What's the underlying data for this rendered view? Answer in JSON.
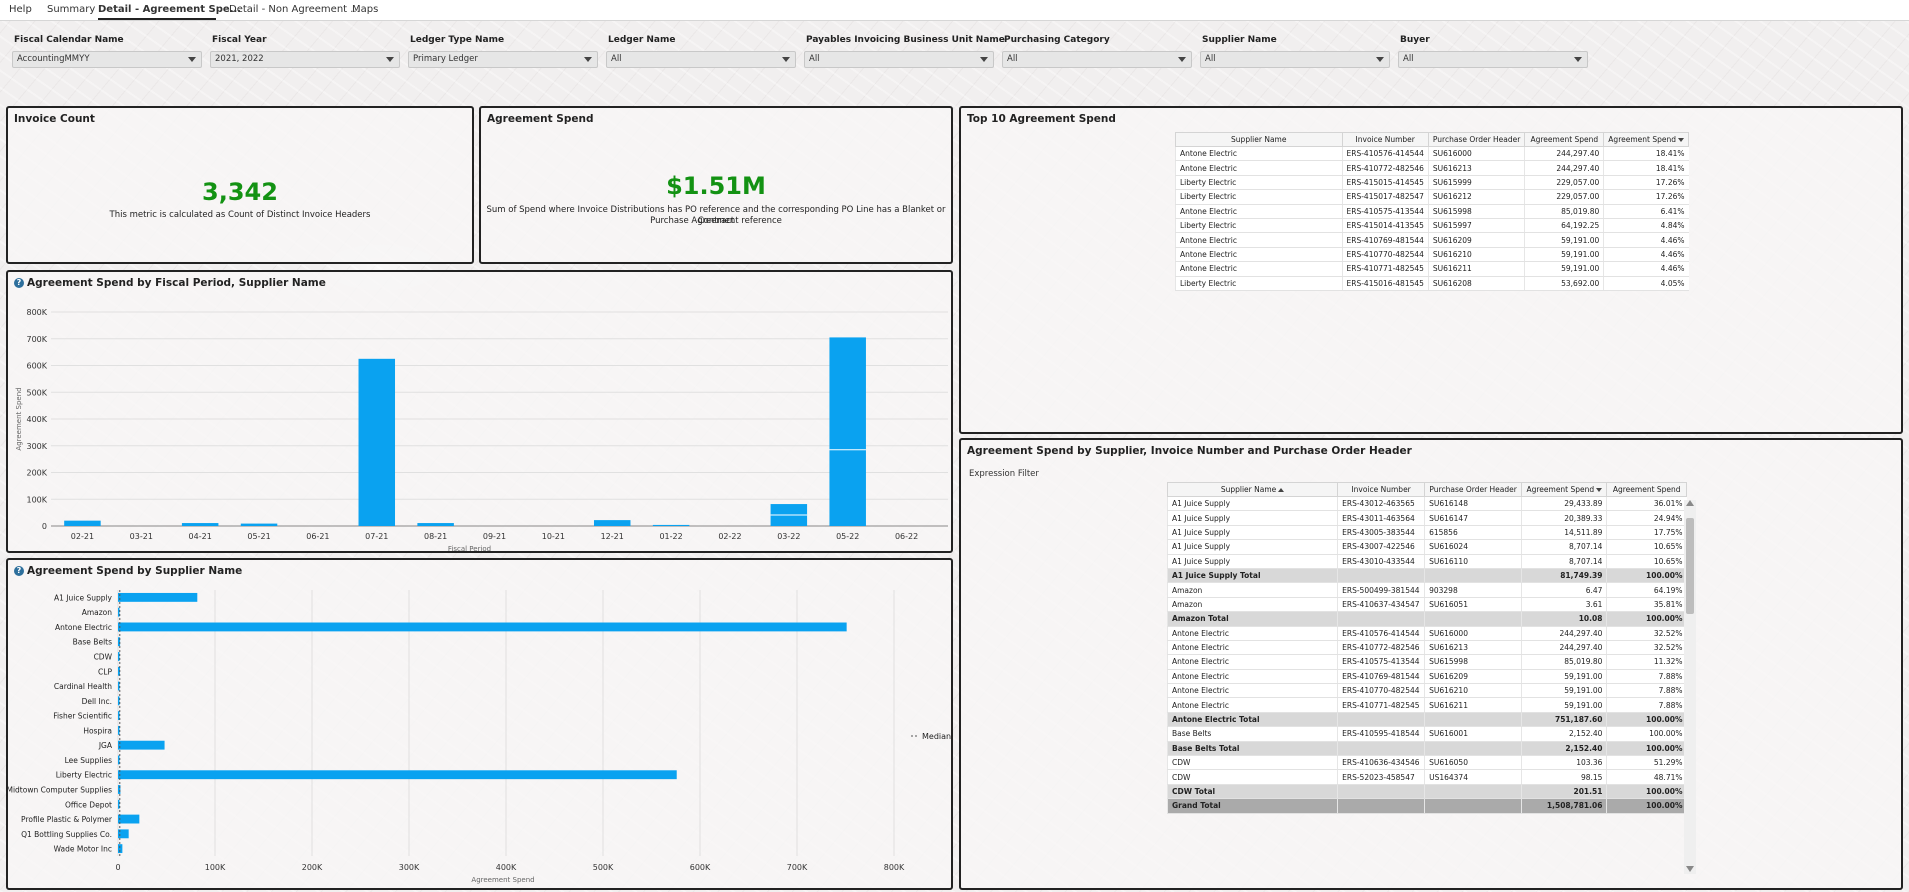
{
  "tabs": [
    {
      "label": "Help"
    },
    {
      "label": "Summary"
    },
    {
      "label": "Detail - Agreement Spe...",
      "active": true
    },
    {
      "label": "Detail - Non Agreement ..."
    },
    {
      "label": "Maps"
    }
  ],
  "filters": [
    {
      "label": "Fiscal Calendar Name",
      "value": "AccountingMMYY"
    },
    {
      "label": "Fiscal Year",
      "value": "2021, 2022"
    },
    {
      "label": "Ledger Type Name",
      "value": "Primary Ledger"
    },
    {
      "label": "Ledger Name",
      "value": "All"
    },
    {
      "label": "Payables Invoicing Business Unit Name",
      "value": "All"
    },
    {
      "label": "Purchasing Category",
      "value": "All"
    },
    {
      "label": "Supplier Name",
      "value": "All"
    },
    {
      "label": "Buyer",
      "value": "All"
    }
  ],
  "invoice_count": {
    "title": "Invoice Count",
    "value": "3,342",
    "description": "This metric is calculated as Count of Distinct Invoice Headers"
  },
  "agreement_spend": {
    "title": "Agreement Spend",
    "value": "$1.51M",
    "description_line1": "Sum of Spend where Invoice Distributions has PO reference and the corresponding PO Line has a Blanket or Contract",
    "description_line2": "Purchase Agreement reference",
    "accent_color": "#139213"
  },
  "top10": {
    "title": "Top 10 Agreement Spend",
    "columns": [
      "Supplier Name",
      "Invoice Number",
      "Purchase Order Header",
      "Agreement Spend",
      "Agreement Spend"
    ],
    "rows": [
      [
        "Antone Electric",
        "ERS-410576-414544",
        "SU616000",
        "244,297.40",
        "18.41%"
      ],
      [
        "Antone Electric",
        "ERS-410772-482546",
        "SU616213",
        "244,297.40",
        "18.41%"
      ],
      [
        "Liberty Electric",
        "ERS-415015-414545",
        "SU615999",
        "229,057.00",
        "17.26%"
      ],
      [
        "Liberty Electric",
        "ERS-415017-482547",
        "SU616212",
        "229,057.00",
        "17.26%"
      ],
      [
        "Antone Electric",
        "ERS-410575-413544",
        "SU615998",
        "85,019.80",
        "6.41%"
      ],
      [
        "Liberty Electric",
        "ERS-415014-413545",
        "SU615997",
        "64,192.25",
        "4.84%"
      ],
      [
        "Antone Electric",
        "ERS-410769-481544",
        "SU616209",
        "59,191.00",
        "4.46%"
      ],
      [
        "Antone Electric",
        "ERS-410770-482544",
        "SU616210",
        "59,191.00",
        "4.46%"
      ],
      [
        "Antone Electric",
        "ERS-410771-482545",
        "SU616211",
        "59,191.00",
        "4.46%"
      ],
      [
        "Liberty Electric",
        "ERS-415016-481545",
        "SU616208",
        "53,692.00",
        "4.05%"
      ]
    ]
  },
  "by_supplier_table": {
    "title": "Agreement Spend by Supplier, Invoice Number and Purchase Order Header",
    "filter_label": "Expression Filter",
    "columns": [
      "Supplier Name",
      "Invoice Number",
      "Purchase Order Header",
      "Agreement Spend",
      "Agreement Spend"
    ],
    "rows": [
      {
        "type": "row",
        "cells": [
          "A1 Juice Supply",
          "ERS-43012-463565",
          "SU616148",
          "29,433.89",
          "36.01%"
        ]
      },
      {
        "type": "row",
        "cells": [
          "A1 Juice Supply",
          "ERS-43011-463564",
          "SU616147",
          "20,389.33",
          "24.94%"
        ]
      },
      {
        "type": "row",
        "cells": [
          "A1 Juice Supply",
          "ERS-43005-383544",
          "615856",
          "14,511.89",
          "17.75%"
        ]
      },
      {
        "type": "row",
        "cells": [
          "A1 Juice Supply",
          "ERS-43007-422546",
          "SU616024",
          "8,707.14",
          "10.65%"
        ]
      },
      {
        "type": "row",
        "cells": [
          "A1 Juice Supply",
          "ERS-43010-433544",
          "SU616110",
          "8,707.14",
          "10.65%"
        ]
      },
      {
        "type": "subtotal",
        "cells": [
          "A1 Juice Supply Total",
          "",
          "",
          "81,749.39",
          "100.00%"
        ]
      },
      {
        "type": "row",
        "cells": [
          "Amazon",
          "ERS-500499-381544",
          "903298",
          "6.47",
          "64.19%"
        ]
      },
      {
        "type": "row",
        "cells": [
          "Amazon",
          "ERS-410637-434547",
          "SU616051",
          "3.61",
          "35.81%"
        ]
      },
      {
        "type": "subtotal",
        "cells": [
          "Amazon Total",
          "",
          "",
          "10.08",
          "100.00%"
        ]
      },
      {
        "type": "row",
        "cells": [
          "Antone Electric",
          "ERS-410576-414544",
          "SU616000",
          "244,297.40",
          "32.52%"
        ]
      },
      {
        "type": "row",
        "cells": [
          "Antone Electric",
          "ERS-410772-482546",
          "SU616213",
          "244,297.40",
          "32.52%"
        ]
      },
      {
        "type": "row",
        "cells": [
          "Antone Electric",
          "ERS-410575-413544",
          "SU615998",
          "85,019.80",
          "11.32%"
        ]
      },
      {
        "type": "row",
        "cells": [
          "Antone Electric",
          "ERS-410769-481544",
          "SU616209",
          "59,191.00",
          "7.88%"
        ]
      },
      {
        "type": "row",
        "cells": [
          "Antone Electric",
          "ERS-410770-482544",
          "SU616210",
          "59,191.00",
          "7.88%"
        ]
      },
      {
        "type": "row",
        "cells": [
          "Antone Electric",
          "ERS-410771-482545",
          "SU616211",
          "59,191.00",
          "7.88%"
        ]
      },
      {
        "type": "subtotal",
        "cells": [
          "Antone Electric Total",
          "",
          "",
          "751,187.60",
          "100.00%"
        ]
      },
      {
        "type": "row",
        "cells": [
          "Base Belts",
          "ERS-410595-418544",
          "SU616001",
          "2,152.40",
          "100.00%"
        ]
      },
      {
        "type": "subtotal",
        "cells": [
          "Base Belts Total",
          "",
          "",
          "2,152.40",
          "100.00%"
        ]
      },
      {
        "type": "row",
        "cells": [
          "CDW",
          "ERS-410636-434546",
          "SU616050",
          "103.36",
          "51.29%"
        ]
      },
      {
        "type": "row",
        "cells": [
          "CDW",
          "ERS-52023-458547",
          "US164374",
          "98.15",
          "48.71%"
        ]
      },
      {
        "type": "subtotal",
        "cells": [
          "CDW Total",
          "",
          "",
          "201.51",
          "100.00%"
        ]
      },
      {
        "type": "grandtotal",
        "cells": [
          "Grand Total",
          "",
          "",
          "1,508,781.06",
          "100.00%"
        ]
      }
    ]
  },
  "colors": {
    "bar": "#0aa2f0",
    "kpi": "#139213",
    "panel_border": "#222222"
  },
  "chart_data": [
    {
      "type": "bar",
      "title": "Agreement Spend by Fiscal Period, Supplier Name",
      "xlabel": "Fiscal Period",
      "ylabel": "Agreement Spend",
      "ylim": [
        0,
        800000
      ],
      "yticks": [
        "0",
        "100K",
        "200K",
        "300K",
        "400K",
        "500K",
        "600K",
        "700K",
        "800K"
      ],
      "categories": [
        "02-21",
        "03-21",
        "04-21",
        "05-21",
        "06-21",
        "07-21",
        "08-21",
        "09-21",
        "10-21",
        "12-21",
        "01-22",
        "02-22",
        "03-22",
        "05-22",
        "06-22"
      ],
      "values": [
        20000,
        0,
        11000,
        9000,
        0,
        625000,
        11000,
        0,
        0,
        22000,
        4000,
        0,
        82000,
        705000,
        0
      ],
      "stack_breaks": {
        "03-22": [
          41000
        ],
        "05-22": [
          285000
        ]
      },
      "color": "#0aa2f0",
      "grid": true
    },
    {
      "type": "bar",
      "orientation": "horizontal",
      "title": "Agreement Spend by Supplier Name",
      "xlabel": "Agreement Spend",
      "ylabel": "",
      "xlim": [
        0,
        800000
      ],
      "xticks": [
        "0",
        "100K",
        "200K",
        "300K",
        "400K",
        "500K",
        "600K",
        "700K",
        "800K"
      ],
      "categories": [
        "A1 Juice Supply",
        "Amazon",
        "Antone Electric",
        "Base Belts",
        "CDW",
        "CLP",
        "Cardinal Health",
        "Dell Inc.",
        "Fisher Scientific",
        "Hospira",
        "JGA",
        "Lee Supplies",
        "Liberty Electric",
        "Midtown Computer Supplies",
        "Office Depot",
        "Profile Plastic & Polymer",
        "Q1 Bottling Supplies Co.",
        "Wade Motor Inc"
      ],
      "values": [
        81749.39,
        10.08,
        751187.6,
        2152.4,
        201.51,
        2000,
        500,
        300,
        1500,
        1200,
        48000,
        800,
        576000,
        2500,
        400,
        22000,
        11000,
        4500
      ],
      "median_label": "Median",
      "median_value": 1850,
      "color": "#0aa2f0",
      "grid": true,
      "legend": "right"
    }
  ]
}
